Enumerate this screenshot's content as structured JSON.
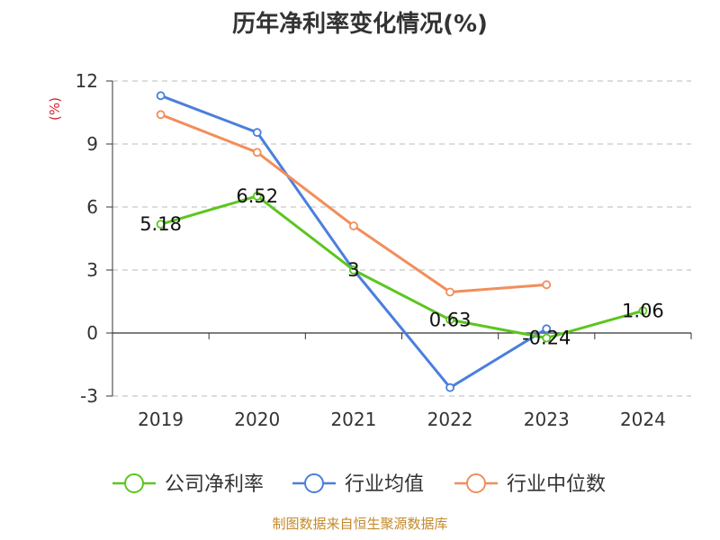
{
  "chart_data": {
    "type": "line",
    "title": "历年净利率变化情况(%)",
    "unit_label": "(%)",
    "categories": [
      "2019",
      "2020",
      "2021",
      "2022",
      "2023",
      "2024"
    ],
    "ylim": [
      -3,
      12
    ],
    "yticks": [
      -3,
      0,
      3,
      6,
      9,
      12
    ],
    "grid": true,
    "legend_position": "bottom",
    "series": [
      {
        "name": "公司净利率",
        "color": "#5cc61f",
        "values": [
          5.18,
          6.52,
          3,
          0.63,
          -0.24,
          1.06
        ],
        "labels": [
          "5.18",
          "6.52",
          "3",
          "0.63",
          "-0.24",
          "1.06"
        ]
      },
      {
        "name": "行业均值",
        "color": "#4a7fdc",
        "values": [
          11.3,
          9.55,
          3.0,
          -2.6,
          0.2,
          null
        ]
      },
      {
        "name": "行业中位数",
        "color": "#f28e5b",
        "values": [
          10.4,
          8.6,
          5.1,
          1.95,
          2.3,
          null
        ]
      }
    ],
    "source": "制图数据来自恒生聚源数据库"
  }
}
